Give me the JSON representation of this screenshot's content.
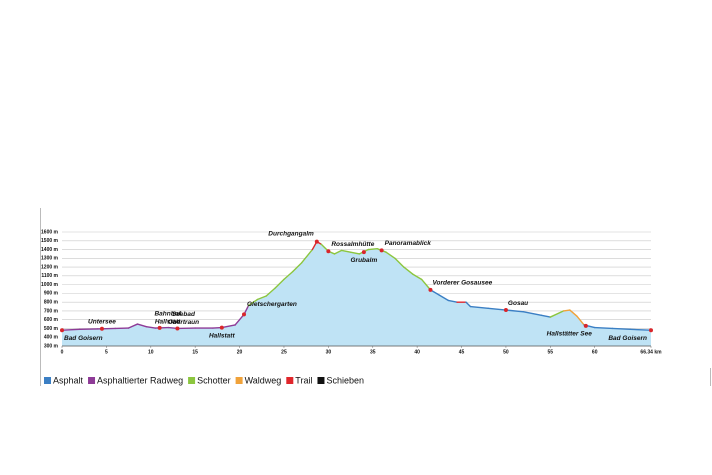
{
  "chart_data": {
    "type": "elevation-profile",
    "x": [
      0,
      2,
      4,
      6,
      7.5,
      8.5,
      9.5,
      10.5,
      12,
      13,
      15,
      17,
      18,
      19.5,
      20.5,
      21,
      22,
      23,
      24,
      25,
      26,
      27,
      28.2,
      28.7,
      29.2,
      30,
      30.7,
      31.5,
      32.5,
      33.5,
      34.5,
      35.5,
      36.5,
      37.5,
      38.5,
      39.5,
      40.5,
      41.5,
      42.5,
      43.5,
      44.5,
      45.5,
      46,
      48,
      50,
      52,
      54,
      55,
      56.5,
      57.2,
      58,
      58.8,
      60,
      62,
      64,
      66.34
    ],
    "values": [
      480,
      490,
      495,
      500,
      505,
      550,
      520,
      505,
      510,
      500,
      505,
      505,
      510,
      540,
      660,
      760,
      830,
      870,
      960,
      1060,
      1150,
      1250,
      1400,
      1490,
      1460,
      1380,
      1350,
      1390,
      1370,
      1350,
      1400,
      1410,
      1370,
      1300,
      1200,
      1120,
      1060,
      940,
      880,
      820,
      800,
      800,
      750,
      730,
      710,
      690,
      650,
      630,
      700,
      710,
      640,
      540,
      510,
      500,
      490,
      480
    ],
    "segment_surface": [
      1,
      1,
      1,
      1,
      1,
      1,
      1,
      1,
      1,
      1,
      1,
      1,
      1,
      1,
      1,
      2,
      2,
      2,
      2,
      2,
      2,
      2,
      4,
      4,
      2,
      2,
      2,
      2,
      2,
      2,
      2,
      2,
      2,
      2,
      2,
      2,
      2,
      0,
      0,
      0,
      4,
      0,
      0,
      0,
      0,
      0,
      0,
      2,
      3,
      3,
      3,
      0,
      0,
      0,
      0
    ],
    "series": [
      {
        "name": "Asphalt",
        "color": "#3b7fc4"
      },
      {
        "name": "Asphaltierter Radweg",
        "color": "#8e3b97"
      },
      {
        "name": "Schotter",
        "color": "#8cc63f"
      },
      {
        "name": "Waldweg",
        "color": "#f0a23a"
      },
      {
        "name": "Trail",
        "color": "#e0262b"
      },
      {
        "name": "Schieben",
        "color": "#111111"
      }
    ],
    "area_color": "#bfe3f5",
    "waypoints": [
      {
        "label": [
          "Bad Goisern"
        ],
        "km": 0,
        "elevation": 480
      },
      {
        "label": [
          "Untersee"
        ],
        "km": 4.5,
        "elevation": 497
      },
      {
        "label": [
          "Bahnhof",
          "Hallstatt"
        ],
        "km": 11,
        "elevation": 507
      },
      {
        "label": [
          "Seebad",
          "Obertraun"
        ],
        "km": 13,
        "elevation": 500
      },
      {
        "label": [
          "Hallstatt"
        ],
        "km": 18,
        "elevation": 510
      },
      {
        "label": [
          "Gletschergarten"
        ],
        "km": 20.5,
        "elevation": 660
      },
      {
        "label": [
          "Durchgangalm"
        ],
        "km": 28.7,
        "elevation": 1490
      },
      {
        "label": [
          "Rossalmhütte"
        ],
        "km": 30,
        "elevation": 1380
      },
      {
        "label": [
          "Grubalm"
        ],
        "km": 34,
        "elevation": 1370
      },
      {
        "label": [
          "Panoramablick"
        ],
        "km": 36,
        "elevation": 1390
      },
      {
        "label": [
          "Vorderer Gosausee"
        ],
        "km": 41.5,
        "elevation": 940
      },
      {
        "label": [
          "Gosau"
        ],
        "km": 50,
        "elevation": 710
      },
      {
        "label": [
          "Hallstätter See"
        ],
        "km": 59,
        "elevation": 530
      },
      {
        "label": [
          "Bad Goisern"
        ],
        "km": 66.34,
        "elevation": 480
      }
    ],
    "xlim": [
      0,
      66.34
    ],
    "xticks": [
      0,
      5,
      10,
      15,
      20,
      25,
      30,
      35,
      40,
      45,
      50,
      55,
      60,
      {
        "value": 66.34,
        "label": "66.34 km"
      }
    ],
    "ylim": [
      300,
      1600
    ],
    "yticks": [
      {
        "value": 300,
        "label": "300 m"
      },
      {
        "value": 400,
        "label": "400 m"
      },
      {
        "value": 500,
        "label": "500 m"
      },
      {
        "value": 600,
        "label": "600 m"
      },
      {
        "value": 700,
        "label": "700 m"
      },
      {
        "value": 800,
        "label": "800 m"
      },
      {
        "value": 900,
        "label": "900 m"
      },
      {
        "value": 1000,
        "label": "1000 m"
      },
      {
        "value": 1100,
        "label": "1100 m"
      },
      {
        "value": 1200,
        "label": "1200 m"
      },
      {
        "value": 1300,
        "label": "1300 m"
      },
      {
        "value": 1400,
        "label": "1400 m"
      },
      {
        "value": 1500,
        "label": "1500 m"
      },
      {
        "value": 1600,
        "label": "1600 m"
      }
    ],
    "grid": true
  }
}
